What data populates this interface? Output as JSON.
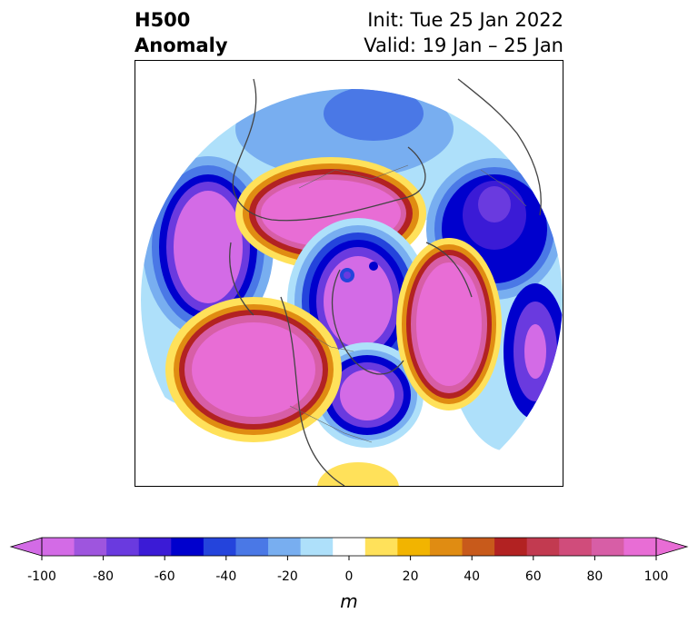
{
  "header": {
    "title_line1": "H500",
    "title_line2": "Anomaly",
    "init": "Init: Tue 25 Jan 2022",
    "valid": "Valid: 19 Jan – 25 Jan"
  },
  "colorbar": {
    "unit": "m",
    "ticks": [
      "-100",
      "-80",
      "-60",
      "-40",
      "-20",
      "0",
      "20",
      "40",
      "60",
      "80",
      "100"
    ],
    "levels": [
      -100,
      -90,
      -80,
      -70,
      -60,
      -50,
      -40,
      -30,
      -20,
      -10,
      10,
      20,
      30,
      40,
      50,
      60,
      70,
      80,
      90,
      100
    ],
    "colors": [
      "#d36be6",
      "#9e55de",
      "#6a3adf",
      "#3b1bd6",
      "#0000cd",
      "#2444dc",
      "#4a78e6",
      "#78aef0",
      "#aee0fa",
      "#ffffff",
      "#ffe15a",
      "#f2b400",
      "#e08c12",
      "#c85a1b",
      "#b22222",
      "#c23a50",
      "#d04c7b",
      "#d75ea6",
      "#e86dd5"
    ],
    "extend_low": "#d36be6",
    "extend_high": "#e86dd5"
  }
}
